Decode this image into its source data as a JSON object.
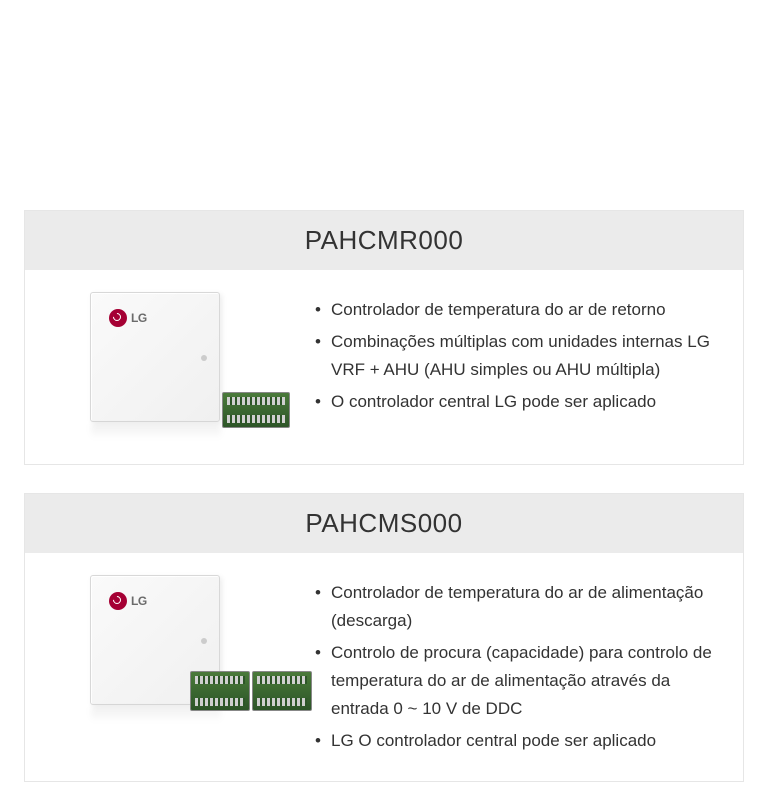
{
  "products": [
    {
      "model": "PAHCMR000",
      "image_type": "single",
      "features": [
        "Controlador de temperatura do ar de retorno",
        "Combinações múltiplas com unidades internas LG VRF + AHU (AHU simples ou AHU múltipla)",
        "O controlador central LG pode ser aplicado"
      ]
    },
    {
      "model": "PAHCMS000",
      "image_type": "double",
      "features": [
        "Controlador de temperatura do ar de alimentação (descarga)",
        "Controlo de procura (capacidade) para controlo de temperatura do ar de alimentação através da entrada 0 ~ 10 V de DDC",
        "LG O controlador central pode ser aplicado"
      ]
    }
  ],
  "lg_brand_text": "LG",
  "colors": {
    "header_bg": "#ebebeb",
    "body_bg": "#ffffff",
    "border": "#e6e6e6",
    "text": "#333333",
    "lg_red": "#a50034",
    "pcb_green": "#2d5528",
    "enclosure": "#f5f5f5"
  }
}
